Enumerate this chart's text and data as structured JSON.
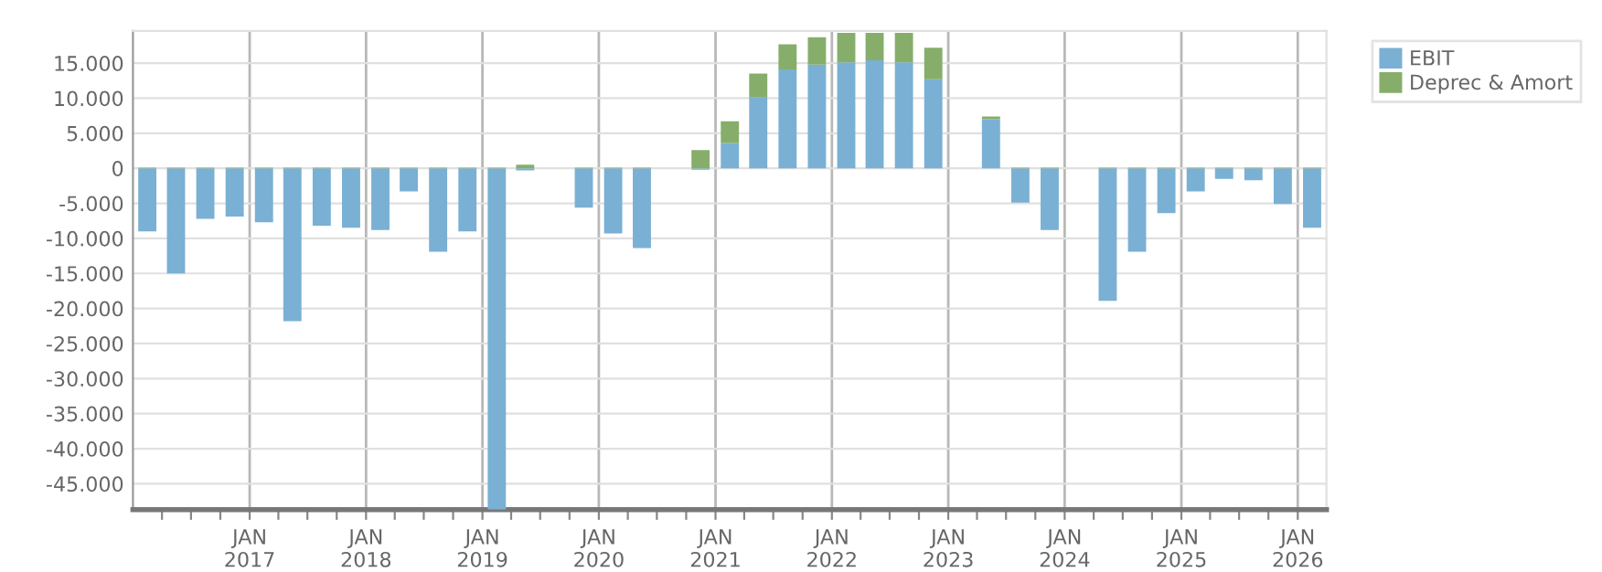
{
  "chart_data": {
    "type": "bar",
    "stacked": true,
    "x": [
      "2016-02-15",
      "2016-05-15",
      "2016-08-15",
      "2016-11-15",
      "2017-02-15",
      "2017-05-15",
      "2017-08-15",
      "2017-11-15",
      "2018-02-15",
      "2018-05-15",
      "2018-08-15",
      "2018-11-15",
      "2019-02-15",
      "2019-05-15",
      "2019-08-15",
      "2019-11-15",
      "2020-02-15",
      "2020-05-15",
      "2020-08-15",
      "2020-11-15",
      "2021-02-15",
      "2021-05-15",
      "2021-08-15",
      "2021-11-15",
      "2022-02-15",
      "2022-05-15",
      "2022-08-15",
      "2022-11-15",
      "2023-02-15",
      "2023-05-15",
      "2023-08-15",
      "2023-11-15",
      "2024-02-15",
      "2024-05-15",
      "2024-08-15",
      "2024-11-15",
      "2025-02-15",
      "2025-05-15",
      "2025-08-15",
      "2025-11-15",
      "2026-02-15"
    ],
    "series": [
      {
        "name": "EBIT",
        "color": "#7ab0d4",
        "values": [
          -9000,
          -15000,
          -7200,
          -6900,
          -7700,
          -21800,
          -8200,
          -8500,
          -8800,
          -3300,
          -11900,
          -9000,
          -48700,
          -300,
          null,
          -5600,
          -9300,
          -11400,
          null,
          -200,
          3600,
          10100,
          14100,
          14800,
          15100,
          15400,
          15100,
          12700,
          null,
          7000,
          -4900,
          -8800,
          null,
          -18900,
          -11900,
          -6400,
          -3300,
          -1500,
          -1700,
          -5100,
          -8500
        ]
      },
      {
        "name": "Deprec & Amort",
        "color": "#86ae6a",
        "values": [
          100,
          100,
          100,
          100,
          100,
          100,
          100,
          100,
          100,
          100,
          100,
          100,
          100,
          500,
          null,
          100,
          100,
          100,
          null,
          2600,
          3100,
          3400,
          3600,
          3900,
          4200,
          3900,
          4200,
          4500,
          null,
          400,
          100,
          100,
          null,
          100,
          100,
          100,
          100,
          100,
          100,
          100,
          100
        ]
      }
    ],
    "xlim": [
      "2016-01-01",
      "2026-04-01"
    ],
    "xticks": [
      {
        "value": "2016-04-01",
        "label": null
      },
      {
        "value": "2016-07-01",
        "label": null
      },
      {
        "value": "2016-10-01",
        "label": null
      },
      {
        "value": "2017-01-01",
        "label": "JAN\n2017"
      },
      {
        "value": "2017-04-01",
        "label": null
      },
      {
        "value": "2017-07-01",
        "label": null
      },
      {
        "value": "2017-10-01",
        "label": null
      },
      {
        "value": "2018-01-01",
        "label": "JAN\n2018"
      },
      {
        "value": "2018-04-01",
        "label": null
      },
      {
        "value": "2018-07-01",
        "label": null
      },
      {
        "value": "2018-10-01",
        "label": null
      },
      {
        "value": "2019-01-01",
        "label": "JAN\n2019"
      },
      {
        "value": "2019-04-01",
        "label": null
      },
      {
        "value": "2019-07-01",
        "label": null
      },
      {
        "value": "2019-10-01",
        "label": null
      },
      {
        "value": "2020-01-01",
        "label": "JAN\n2020"
      },
      {
        "value": "2020-04-01",
        "label": null
      },
      {
        "value": "2020-07-01",
        "label": null
      },
      {
        "value": "2020-10-01",
        "label": null
      },
      {
        "value": "2021-01-01",
        "label": "JAN\n2021"
      },
      {
        "value": "2021-04-01",
        "label": null
      },
      {
        "value": "2021-07-01",
        "label": null
      },
      {
        "value": "2021-10-01",
        "label": null
      },
      {
        "value": "2022-01-01",
        "label": "JAN\n2022"
      },
      {
        "value": "2022-04-01",
        "label": null
      },
      {
        "value": "2022-07-01",
        "label": null
      },
      {
        "value": "2022-10-01",
        "label": null
      },
      {
        "value": "2023-01-01",
        "label": "JAN\n2023"
      },
      {
        "value": "2023-04-01",
        "label": null
      },
      {
        "value": "2023-07-01",
        "label": null
      },
      {
        "value": "2023-10-01",
        "label": null
      },
      {
        "value": "2024-01-01",
        "label": "JAN\n2024"
      },
      {
        "value": "2024-04-01",
        "label": null
      },
      {
        "value": "2024-07-01",
        "label": null
      },
      {
        "value": "2024-10-01",
        "label": null
      },
      {
        "value": "2025-01-01",
        "label": "JAN\n2025"
      },
      {
        "value": "2025-04-01",
        "label": null
      },
      {
        "value": "2025-07-01",
        "label": null
      },
      {
        "value": "2025-10-01",
        "label": null
      },
      {
        "value": "2026-01-01",
        "label": "JAN\n2026"
      }
    ],
    "ylim": [
      -48700,
      19600
    ],
    "yticks": [
      {
        "value": -45000,
        "label": "-45.000"
      },
      {
        "value": -40000,
        "label": "-40.000"
      },
      {
        "value": -35000,
        "label": "-35.000"
      },
      {
        "value": -30000,
        "label": "-30.000"
      },
      {
        "value": -25000,
        "label": "-25.000"
      },
      {
        "value": -20000,
        "label": "-20.000"
      },
      {
        "value": -15000,
        "label": "-15.000"
      },
      {
        "value": -10000,
        "label": "-10.000"
      },
      {
        "value": -5000,
        "label": "-5.000"
      },
      {
        "value": 0,
        "label": "0"
      },
      {
        "value": 5000,
        "label": "5.000"
      },
      {
        "value": 10000,
        "label": "10.000"
      },
      {
        "value": 15000,
        "label": "15.000"
      }
    ],
    "grid": true,
    "legend": "top right"
  }
}
